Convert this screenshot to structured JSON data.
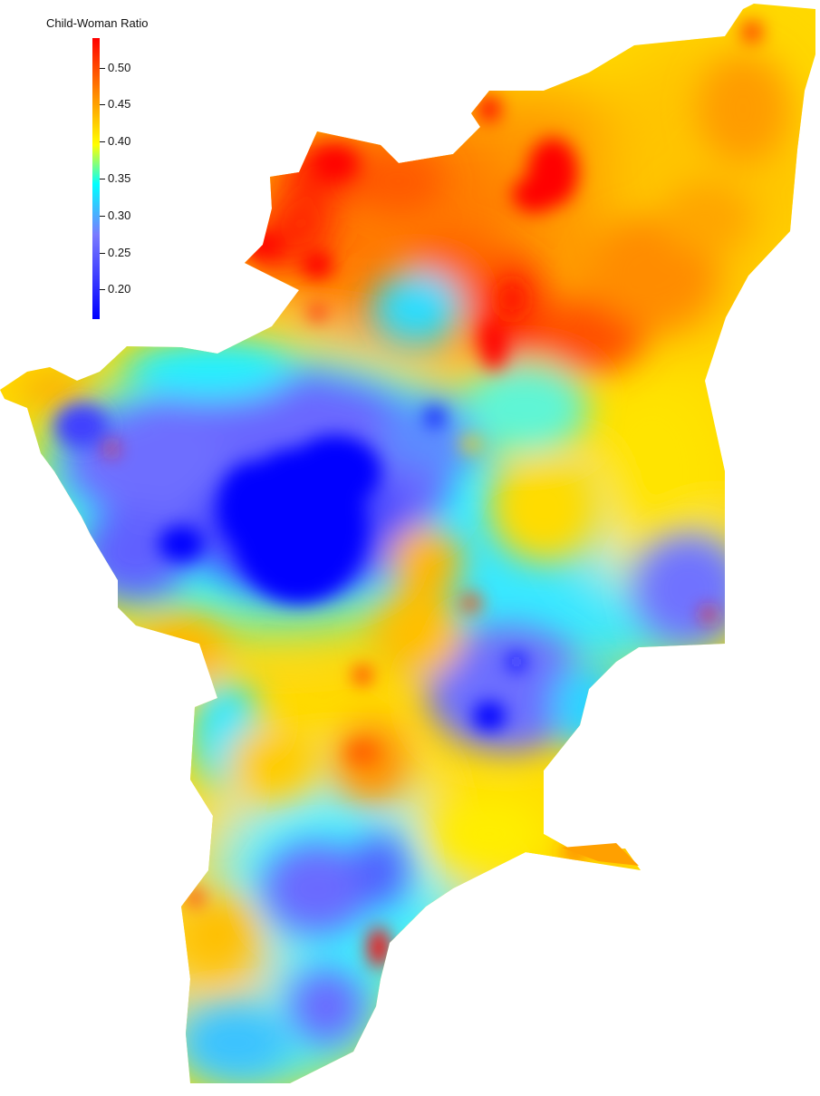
{
  "legend": {
    "title": "Child-Woman Ratio",
    "ticks": [
      0.5,
      0.45,
      0.4,
      0.35,
      0.3,
      0.25,
      0.2
    ],
    "tick_labels": [
      "0.50",
      "0.45",
      "0.40",
      "0.35",
      "0.30",
      "0.25",
      "0.20"
    ],
    "range": [
      0.16,
      0.54
    ],
    "colors": [
      "#0000ff",
      "#6464ff",
      "#00ffff",
      "#ffff00",
      "#ffa500",
      "#ff0000"
    ]
  },
  "map": {
    "region_fill_base": "#ffd800",
    "hotspot_colors": {
      "very_high": "#ff0000",
      "high": "#ff6a00",
      "moderate_high": "#ffb300",
      "mid": "#ffff00",
      "moderate_low": "#00e5ff",
      "low": "#6f6cff",
      "very_low": "#0000ff"
    }
  }
}
